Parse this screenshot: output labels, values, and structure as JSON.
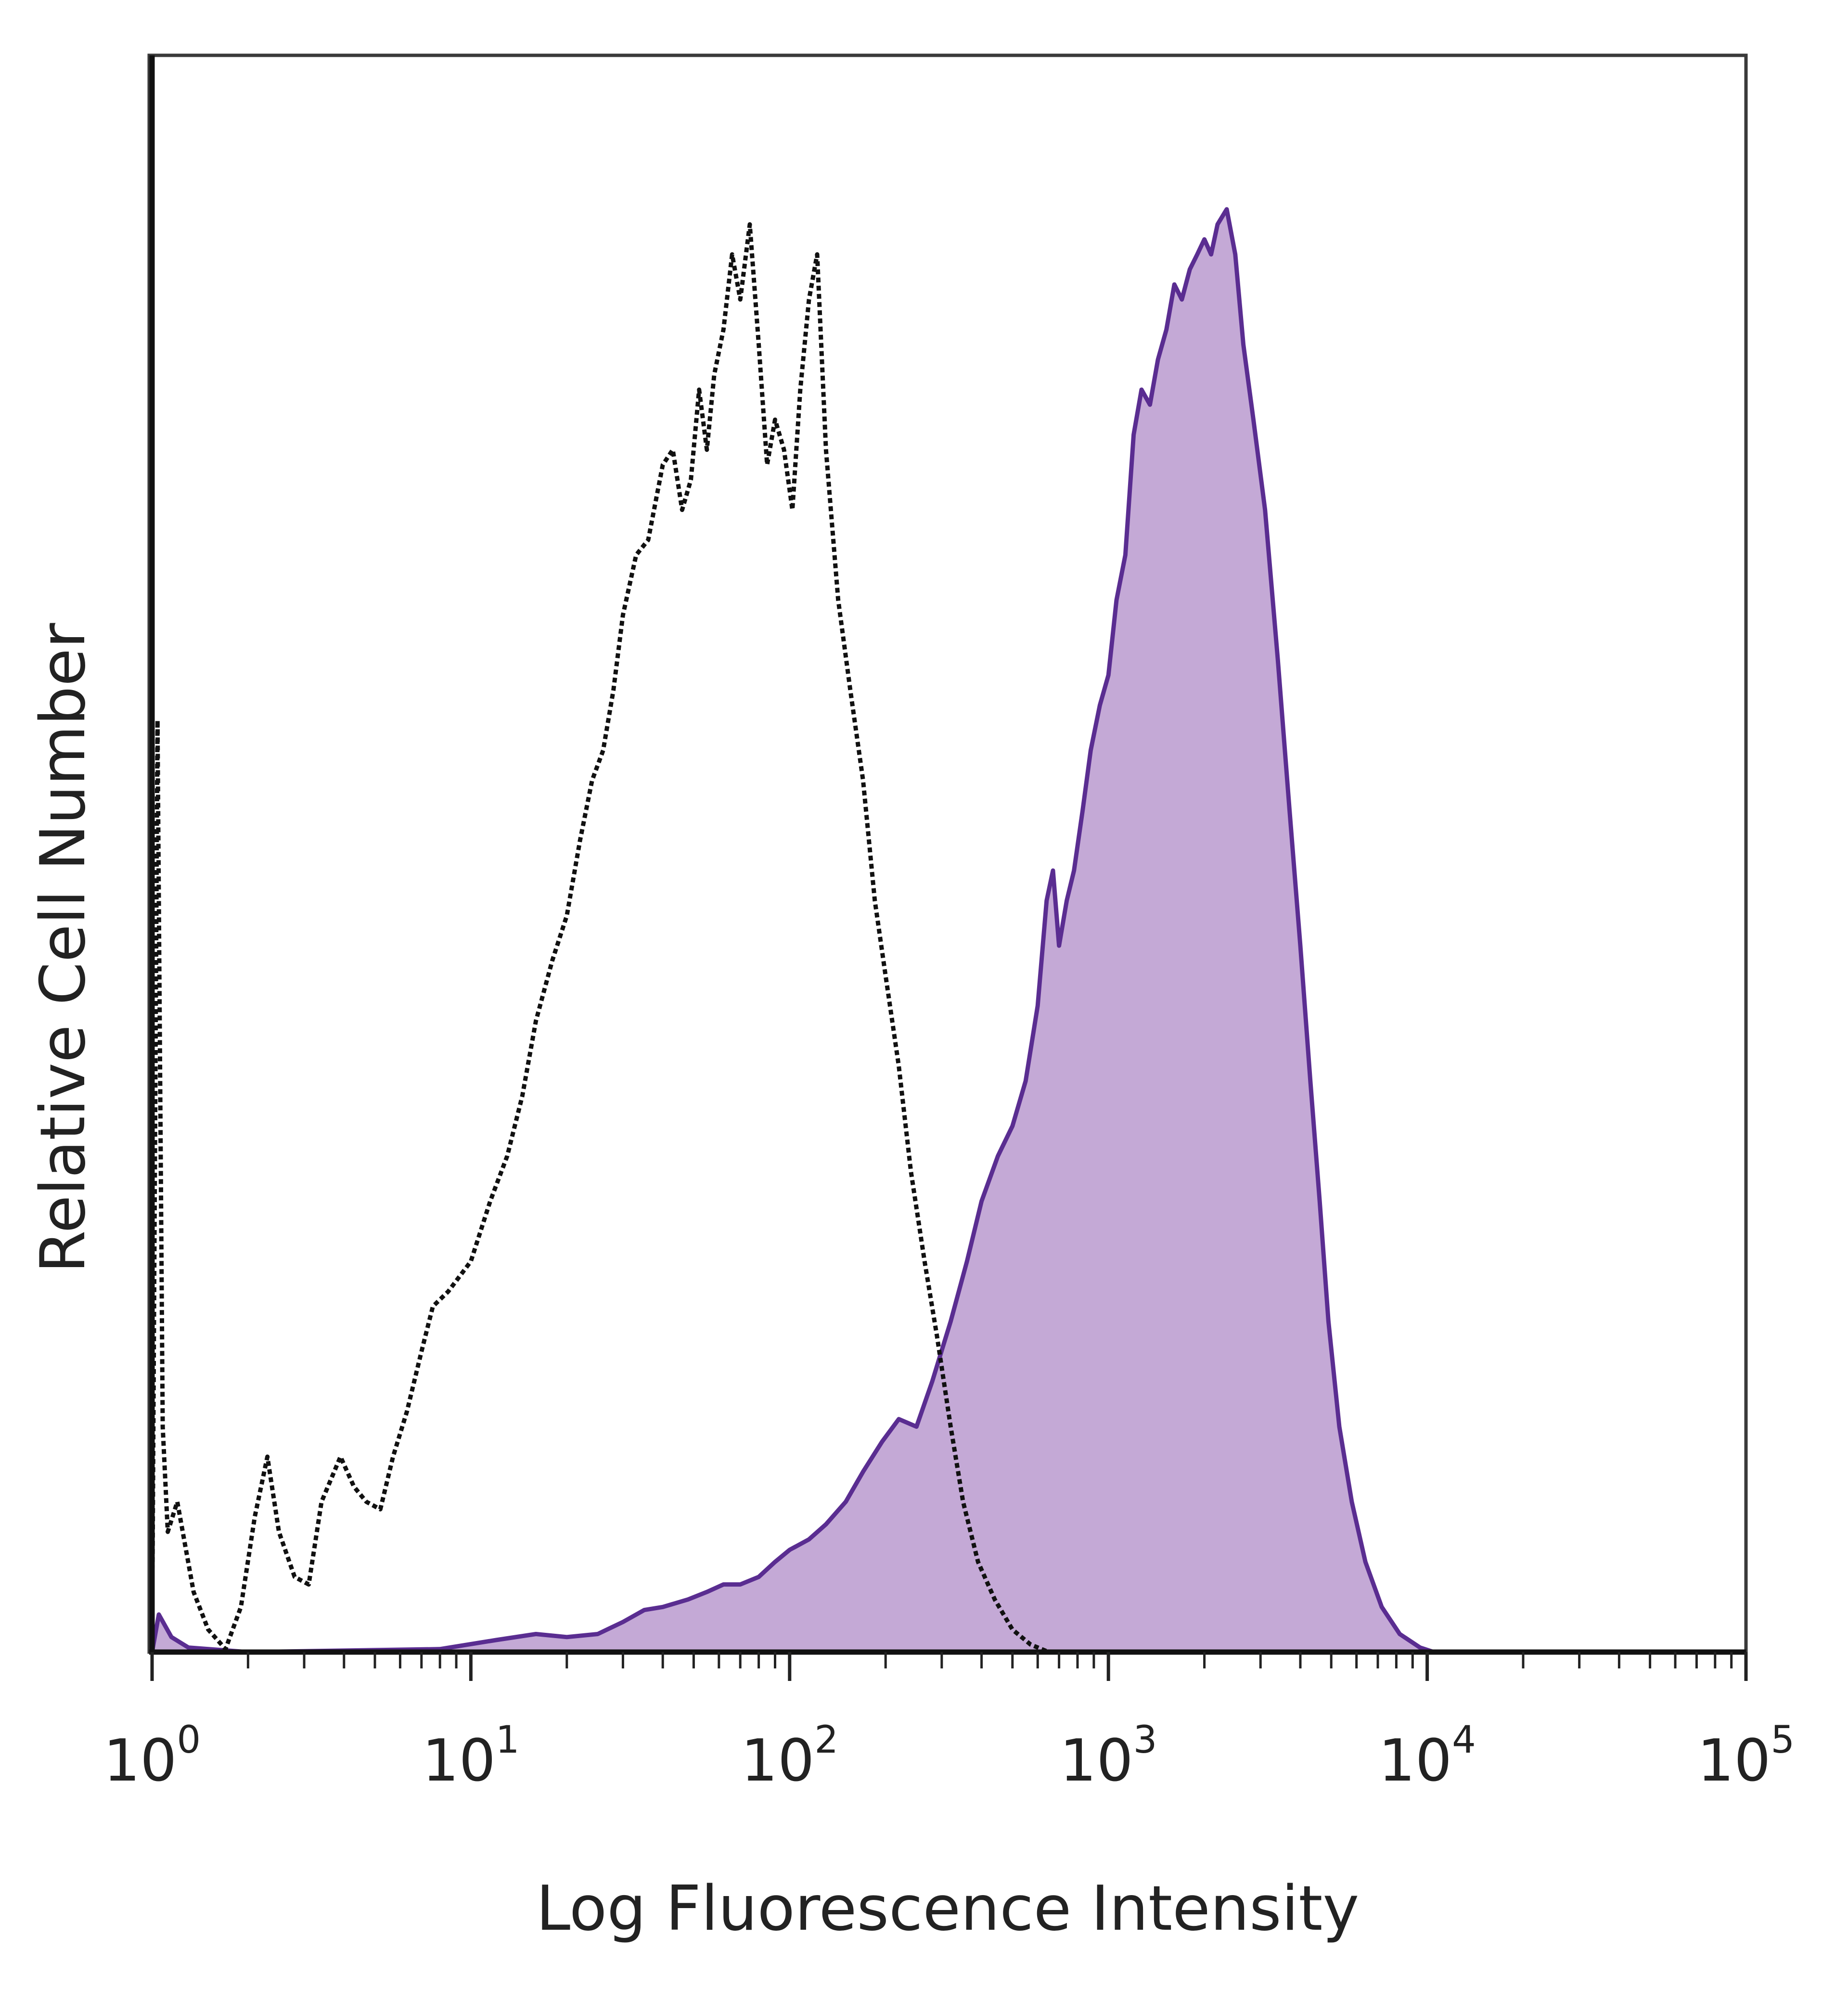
{
  "chart_data": {
    "type": "area",
    "title": "",
    "xlabel": "Log Fluorescence Intensity",
    "ylabel": "Relative Cell Number",
    "x_scale": "log",
    "xlim": [
      1,
      100000
    ],
    "ylim": [
      0,
      1
    ],
    "x_ticks": [
      {
        "base": "10",
        "exp": "0"
      },
      {
        "base": "10",
        "exp": "1"
      },
      {
        "base": "10",
        "exp": "2"
      },
      {
        "base": "10",
        "exp": "3"
      },
      {
        "base": "10",
        "exp": "4"
      },
      {
        "base": "10",
        "exp": "5"
      }
    ],
    "grid": false,
    "legend": "none",
    "series": [
      {
        "style": "dotted-black-outline",
        "color": "#111111",
        "points": [
          [
            1.0,
            0.0
          ],
          [
            1.04,
            0.62
          ],
          [
            1.08,
            0.15
          ],
          [
            1.12,
            0.08
          ],
          [
            1.2,
            0.1
          ],
          [
            1.35,
            0.04
          ],
          [
            1.5,
            0.015
          ],
          [
            1.7,
            0.002
          ],
          [
            1.9,
            0.03
          ],
          [
            2.1,
            0.09
          ],
          [
            2.3,
            0.13
          ],
          [
            2.5,
            0.08
          ],
          [
            2.8,
            0.05
          ],
          [
            3.1,
            0.045
          ],
          [
            3.4,
            0.1
          ],
          [
            3.9,
            0.13
          ],
          [
            4.3,
            0.11
          ],
          [
            4.7,
            0.1
          ],
          [
            5.2,
            0.095
          ],
          [
            5.7,
            0.13
          ],
          [
            6.3,
            0.16
          ],
          [
            7.0,
            0.2
          ],
          [
            7.6,
            0.23
          ],
          [
            8.5,
            0.24
          ],
          [
            10.0,
            0.26
          ],
          [
            11.5,
            0.3
          ],
          [
            13.0,
            0.33
          ],
          [
            14.5,
            0.37
          ],
          [
            16.0,
            0.42
          ],
          [
            18.0,
            0.46
          ],
          [
            20.0,
            0.49
          ],
          [
            22.0,
            0.54
          ],
          [
            24.0,
            0.58
          ],
          [
            26.0,
            0.6
          ],
          [
            28.0,
            0.64
          ],
          [
            30.0,
            0.69
          ],
          [
            33.0,
            0.73
          ],
          [
            36.0,
            0.74
          ],
          [
            40.0,
            0.79
          ],
          [
            43.0,
            0.8
          ],
          [
            46.0,
            0.76
          ],
          [
            49.0,
            0.78
          ],
          [
            52.0,
            0.84
          ],
          [
            55.0,
            0.8
          ],
          [
            58.0,
            0.85
          ],
          [
            62.0,
            0.88
          ],
          [
            66.0,
            0.93
          ],
          [
            70.0,
            0.9
          ],
          [
            75.0,
            0.95
          ],
          [
            80.0,
            0.87
          ],
          [
            85.0,
            0.79
          ],
          [
            90.0,
            0.82
          ],
          [
            96.0,
            0.8
          ],
          [
            102.0,
            0.76
          ],
          [
            108.0,
            0.84
          ],
          [
            115.0,
            0.9
          ],
          [
            122.0,
            0.93
          ],
          [
            130.0,
            0.8
          ],
          [
            142.0,
            0.7
          ],
          [
            155.0,
            0.64
          ],
          [
            170.0,
            0.58
          ],
          [
            185.0,
            0.5
          ],
          [
            200.0,
            0.45
          ],
          [
            220.0,
            0.39
          ],
          [
            240.0,
            0.32
          ],
          [
            265.0,
            0.26
          ],
          [
            290.0,
            0.21
          ],
          [
            320.0,
            0.15
          ],
          [
            350.0,
            0.1
          ],
          [
            390.0,
            0.06
          ],
          [
            440.0,
            0.035
          ],
          [
            500.0,
            0.015
          ],
          [
            570.0,
            0.005
          ],
          [
            650.0,
            0.0
          ],
          [
            100000.0,
            0.0
          ]
        ]
      },
      {
        "style": "filled",
        "color": "#5a2d91",
        "fill": "#c4a9d6",
        "points": [
          [
            1.0,
            0.0
          ],
          [
            1.05,
            0.025
          ],
          [
            1.15,
            0.01
          ],
          [
            1.3,
            0.003
          ],
          [
            2.0,
            0.0
          ],
          [
            8.0,
            0.002
          ],
          [
            12.0,
            0.008
          ],
          [
            16.0,
            0.012
          ],
          [
            20.0,
            0.01
          ],
          [
            25.0,
            0.012
          ],
          [
            30.0,
            0.02
          ],
          [
            35.0,
            0.028
          ],
          [
            40.0,
            0.03
          ],
          [
            48.0,
            0.035
          ],
          [
            55.0,
            0.04
          ],
          [
            62.0,
            0.045
          ],
          [
            70.0,
            0.045
          ],
          [
            80.0,
            0.05
          ],
          [
            90.0,
            0.06
          ],
          [
            100.0,
            0.068
          ],
          [
            115.0,
            0.075
          ],
          [
            130.0,
            0.085
          ],
          [
            150.0,
            0.1
          ],
          [
            170.0,
            0.12
          ],
          [
            195.0,
            0.14
          ],
          [
            220.0,
            0.155
          ],
          [
            250.0,
            0.15
          ],
          [
            280.0,
            0.18
          ],
          [
            320.0,
            0.22
          ],
          [
            360.0,
            0.26
          ],
          [
            400.0,
            0.3
          ],
          [
            450.0,
            0.33
          ],
          [
            500.0,
            0.35
          ],
          [
            550.0,
            0.38
          ],
          [
            600.0,
            0.43
          ],
          [
            640.0,
            0.5
          ],
          [
            670.0,
            0.52
          ],
          [
            700.0,
            0.47
          ],
          [
            740.0,
            0.5
          ],
          [
            780.0,
            0.52
          ],
          [
            830.0,
            0.56
          ],
          [
            880.0,
            0.6
          ],
          [
            940.0,
            0.63
          ],
          [
            1000.0,
            0.65
          ],
          [
            1060.0,
            0.7
          ],
          [
            1130.0,
            0.73
          ],
          [
            1200.0,
            0.81
          ],
          [
            1270.0,
            0.84
          ],
          [
            1350.0,
            0.83
          ],
          [
            1430.0,
            0.86
          ],
          [
            1520.0,
            0.88
          ],
          [
            1610.0,
            0.91
          ],
          [
            1700.0,
            0.9
          ],
          [
            1800.0,
            0.92
          ],
          [
            1900.0,
            0.93
          ],
          [
            2000.0,
            0.94
          ],
          [
            2100.0,
            0.93
          ],
          [
            2200.0,
            0.95
          ],
          [
            2350.0,
            0.96
          ],
          [
            2500.0,
            0.93
          ],
          [
            2650.0,
            0.87
          ],
          [
            2850.0,
            0.82
          ],
          [
            3100.0,
            0.76
          ],
          [
            3400.0,
            0.66
          ],
          [
            3700.0,
            0.56
          ],
          [
            4000.0,
            0.47
          ],
          [
            4300.0,
            0.38
          ],
          [
            4600.0,
            0.3
          ],
          [
            4900.0,
            0.22
          ],
          [
            5300.0,
            0.15
          ],
          [
            5800.0,
            0.1
          ],
          [
            6400.0,
            0.06
          ],
          [
            7200.0,
            0.03
          ],
          [
            8200.0,
            0.012
          ],
          [
            9500.0,
            0.003
          ],
          [
            10500.0,
            0.0
          ],
          [
            100000.0,
            0.0
          ]
        ]
      }
    ]
  }
}
